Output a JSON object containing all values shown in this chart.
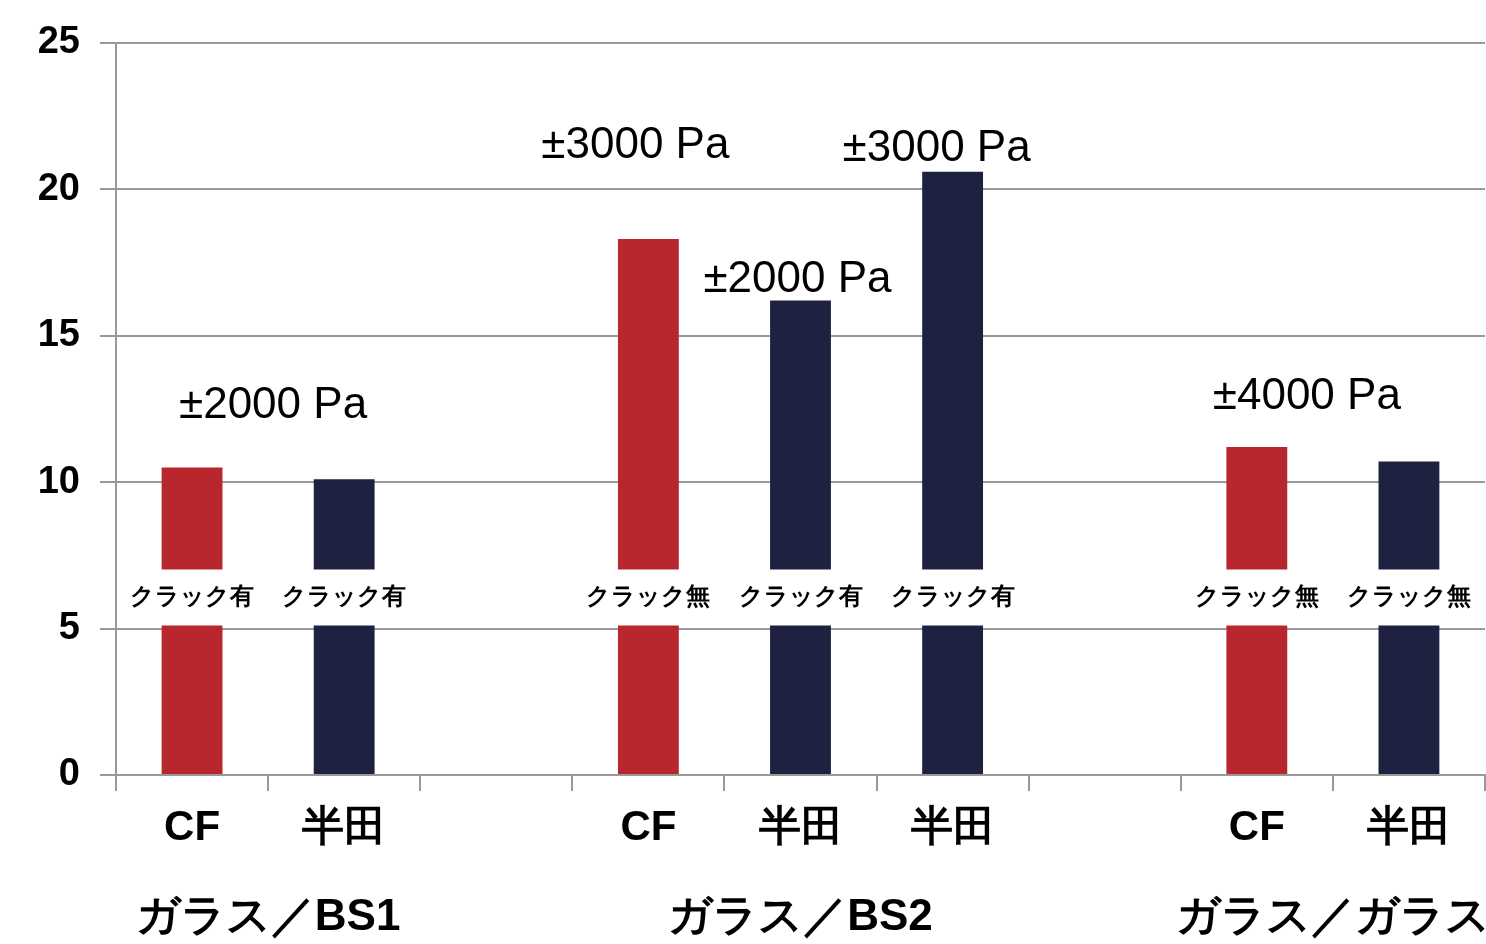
{
  "chart_data": {
    "type": "bar",
    "categories": [
      "CF",
      "半田",
      null,
      "CF",
      "半田",
      "半田",
      null,
      "CF",
      "半田"
    ],
    "values": [
      10.5,
      10.1,
      null,
      18.3,
      16.2,
      20.6,
      null,
      11.2,
      10.7
    ],
    "colors": [
      "#b9272e",
      "#1e2140",
      null,
      "#b9272e",
      "#1e2140",
      "#1e2140",
      null,
      "#b9272e",
      "#1e2140"
    ],
    "ylim": [
      0,
      25
    ],
    "yticks": [
      0,
      5,
      10,
      15,
      20,
      25
    ],
    "grid": "y",
    "legend": false,
    "annotations": [
      "クラック有",
      "クラック有",
      "クラック無",
      "クラック有",
      "クラック有",
      "クラック無",
      "クラック無",
      "±2000 Pa",
      "±3000 Pa",
      "±2000 Pa",
      "±3000 Pa",
      "±4000 Pa",
      "ガラス／BS1",
      "ガラス／BS2",
      "ガラス／ガラス"
    ]
  }
}
